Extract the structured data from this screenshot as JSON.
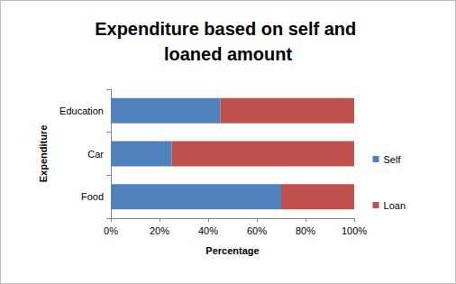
{
  "chart_data": {
    "type": "bar",
    "title": "Expenditure based on self and loaned amount",
    "orientation": "horizontal",
    "stacked": true,
    "grid": false,
    "legend": "right",
    "categories": [
      "Food",
      "Car",
      "Education"
    ],
    "series": [
      {
        "name": "Self",
        "color": "#4f81bd",
        "values": [
          70,
          25,
          45
        ]
      },
      {
        "name": "Loan",
        "color": "#c0504d",
        "values": [
          30,
          75,
          55
        ]
      }
    ],
    "xlabel": "Percentage",
    "ylabel": "Expenditure",
    "xlim": [
      0,
      100
    ],
    "xticks": [
      {
        "value": 0,
        "label": "0%"
      },
      {
        "value": 20,
        "label": "20%"
      },
      {
        "value": 40,
        "label": "40%"
      },
      {
        "value": 60,
        "label": "60%"
      },
      {
        "value": 80,
        "label": "80%"
      },
      {
        "value": 100,
        "label": "100%"
      }
    ]
  }
}
